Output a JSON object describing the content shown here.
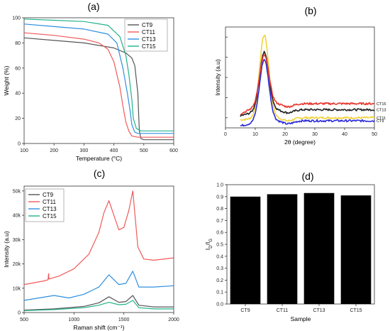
{
  "chart_data": [
    {
      "panel_label": "(a)",
      "type": "line",
      "xlabel": "Temperature (°C)",
      "ylabel": "Weight (%)",
      "xlim": [
        100,
        600
      ],
      "ylim": [
        0,
        100
      ],
      "xticks": [
        100,
        200,
        300,
        400,
        500,
        600
      ],
      "yticks": [
        0,
        20,
        40,
        60,
        80,
        100
      ],
      "legend_position": "top-right",
      "series": [
        {
          "name": "CT9",
          "color": "#555555",
          "x": [
            100,
            200,
            300,
            400,
            440,
            460,
            470,
            480,
            485,
            490,
            500,
            600
          ],
          "y": [
            84,
            82,
            80,
            76,
            72,
            68,
            62,
            40,
            10,
            4,
            3,
            3
          ]
        },
        {
          "name": "CT11",
          "color": "#f15a5a",
          "x": [
            100,
            200,
            300,
            350,
            380,
            400,
            420,
            430,
            440,
            450,
            460,
            480,
            600
          ],
          "y": [
            88,
            86,
            83,
            80,
            75,
            65,
            45,
            30,
            17,
            10,
            6,
            5,
            5
          ]
        },
        {
          "name": "CT13",
          "color": "#2f8fe0",
          "x": [
            100,
            200,
            300,
            380,
            410,
            430,
            445,
            455,
            460,
            470,
            480,
            600
          ],
          "y": [
            95,
            93,
            91,
            87,
            80,
            60,
            40,
            25,
            15,
            9,
            8,
            8
          ]
        },
        {
          "name": "CT15",
          "color": "#22b38a",
          "x": [
            100,
            200,
            300,
            380,
            420,
            440,
            450,
            460,
            465,
            475,
            490,
            600
          ],
          "y": [
            99,
            98,
            97,
            94,
            85,
            70,
            55,
            35,
            20,
            12,
            10,
            10
          ]
        }
      ]
    },
    {
      "panel_label": "(b)",
      "type": "line",
      "xlabel": "2θ (degree)",
      "ylabel": "Intensity (a.u)",
      "xlim": [
        0,
        50
      ],
      "xticks": [
        0,
        10,
        20,
        30,
        40,
        50
      ],
      "y_scale": "arbitrary (stacked)",
      "grid": false,
      "series": [
        {
          "name": "CT15",
          "color": "#e8372d",
          "peak_x": 13,
          "peak_y": 0.72,
          "baseline_y": 0.24,
          "start_y": 0.14
        },
        {
          "name": "CT13",
          "color": "#222222",
          "peak_x": 13,
          "peak_y": 0.75,
          "baseline_y": 0.18,
          "start_y": 0.12
        },
        {
          "name": "CT11",
          "color": "#f2d23a",
          "peak_x": 13,
          "peak_y": 0.92,
          "baseline_y": 0.1,
          "start_y": 0.08
        },
        {
          "name": "CT9",
          "color": "#2a2ad8",
          "peak_x": 13,
          "peak_y": 0.68,
          "baseline_y": 0.07,
          "start_y": 0.02
        }
      ]
    },
    {
      "panel_label": "(c)",
      "type": "line",
      "xlabel": "Raman shift (cm⁻¹)",
      "ylabel": "Intensity (a.u)",
      "xlim": [
        500,
        2000
      ],
      "ylim": [
        0,
        52000
      ],
      "xticks": [
        500,
        1000,
        1500,
        2000
      ],
      "ytick_labels": [
        "0",
        "10k",
        "20k",
        "30k",
        "40k",
        "50k"
      ],
      "yticks": [
        0,
        10000,
        20000,
        30000,
        40000,
        50000
      ],
      "legend_position": "top-left",
      "series": [
        {
          "name": "CT9",
          "color": "#555555",
          "x": [
            500,
            800,
            1100,
            1250,
            1350,
            1450,
            1520,
            1590,
            1650,
            1800,
            2000
          ],
          "y": [
            1000,
            1500,
            2500,
            4000,
            6500,
            4200,
            4500,
            7000,
            3000,
            2300,
            2300
          ]
        },
        {
          "name": "CT11",
          "color": "#f15a5a",
          "x": [
            500,
            700,
            740,
            745,
            750,
            850,
            1000,
            1150,
            1250,
            1300,
            1350,
            1400,
            1450,
            1500,
            1550,
            1590,
            1640,
            1700,
            1800,
            2000
          ],
          "y": [
            11500,
            13000,
            13500,
            16000,
            13800,
            15000,
            18000,
            24000,
            33000,
            41000,
            46000,
            40000,
            34000,
            35000,
            42000,
            50000,
            27000,
            22000,
            21500,
            22500
          ]
        },
        {
          "name": "CT13",
          "color": "#2f8fe0",
          "x": [
            500,
            800,
            950,
            1100,
            1250,
            1350,
            1450,
            1520,
            1590,
            1650,
            1800,
            2000
          ],
          "y": [
            5000,
            7000,
            6000,
            7500,
            10500,
            15500,
            11500,
            12000,
            17000,
            10500,
            10500,
            11000
          ]
        },
        {
          "name": "CT15",
          "color": "#22b38a",
          "x": [
            500,
            800,
            1100,
            1250,
            1350,
            1450,
            1520,
            1590,
            1650,
            1800,
            2000
          ],
          "y": [
            800,
            1200,
            2000,
            3000,
            4200,
            3200,
            3400,
            5000,
            2000,
            1500,
            1500
          ]
        }
      ]
    },
    {
      "panel_label": "(d)",
      "type": "bar",
      "xlabel": "Sample",
      "ylabel": "ID/IG",
      "ylim": [
        0,
        1.0
      ],
      "yticks": [
        0,
        0.1,
        0.2,
        0.3,
        0.4,
        0.5,
        0.6,
        0.7,
        0.8,
        0.9,
        1.0
      ],
      "ytick_labels": [
        "0.0",
        "0.1",
        "0.2",
        "0.3",
        "0.4",
        "0.5",
        "0.6",
        "0.7",
        "0.8",
        "0.9",
        "1.0"
      ],
      "categories": [
        "CT9",
        "CT11",
        "CT13",
        "CT15"
      ],
      "values": [
        0.9,
        0.92,
        0.93,
        0.91
      ],
      "bar_color": "#000000"
    }
  ]
}
